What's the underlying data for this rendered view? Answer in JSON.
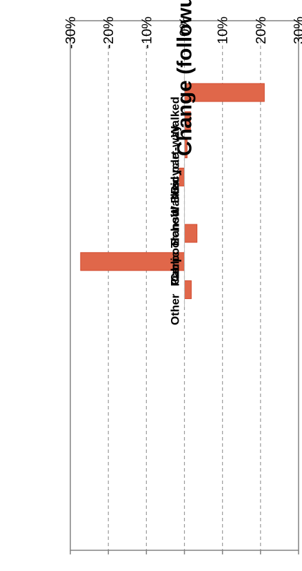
{
  "chart_data": {
    "type": "bar",
    "orientation": "rotated-90",
    "title": "",
    "ylabel": "Change (followup - baseline)",
    "xlabel": "",
    "categories": [
      "Walked",
      "Walked part-way",
      "Bicycle",
      "School Bus",
      "Public Transit",
      "Carpool",
      "Car",
      "Other"
    ],
    "values": [
      21.0,
      1.6,
      0.7,
      -1.3,
      0.0,
      3.3,
      -27.3,
      1.8
    ],
    "ylim": [
      -30,
      30
    ],
    "yticks": [
      -30,
      -20,
      -10,
      0,
      10,
      20,
      30
    ],
    "ytick_labels": [
      "-30%",
      "-20%",
      "-10%",
      "0%",
      "10%",
      "20%",
      "30%"
    ],
    "grid": true,
    "legend": false,
    "colors": {
      "bar_fill": "#e0674a",
      "bar_stroke": "#d24a2e",
      "gridline": "#999999",
      "frame": "#808080"
    }
  }
}
